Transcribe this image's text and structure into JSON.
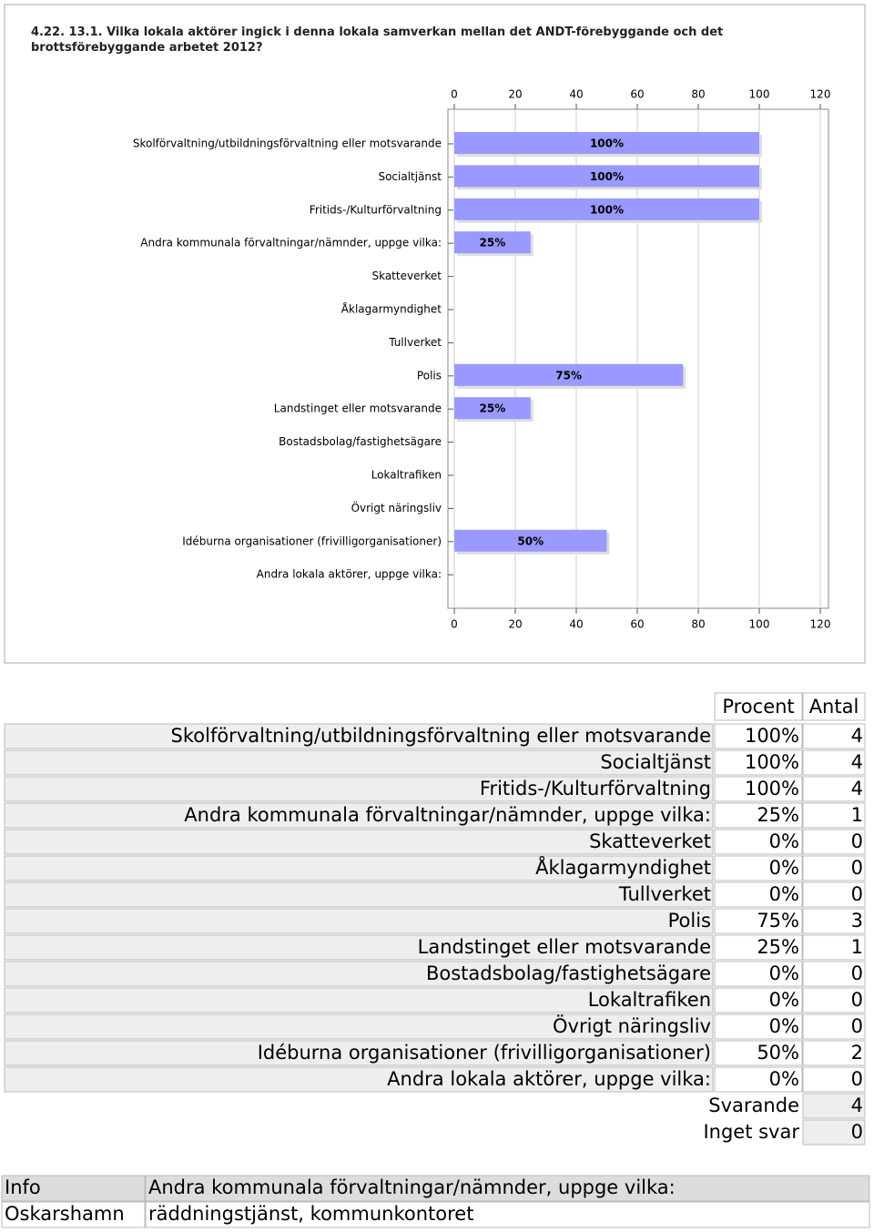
{
  "chart_data": {
    "type": "bar",
    "orientation": "horizontal",
    "title": "4.22. 13.1. Vilka lokala aktörer ingick i denna lokala samverkan mellan det ANDT-förebyggande och det brottsförebyggande arbetet 2012?",
    "categories": [
      "Skolförvaltning/utbildningsförvaltning eller motsvarande",
      "Socialtjänst",
      "Fritids-/Kulturförvaltning",
      "Andra kommunala förvaltningar/nämnder, uppge vilka:",
      "Skatteverket",
      "Åklagarmyndighet",
      "Tullverket",
      "Polis",
      "Landstinget eller motsvarande",
      "Bostadsbolag/fastighetsägare",
      "Lokaltrafiken",
      "Övrigt näringsliv",
      "Idéburna organisationer (frivilligorganisationer)",
      "Andra lokala aktörer, uppge vilka:"
    ],
    "values": [
      100,
      100,
      100,
      25,
      0,
      0,
      0,
      75,
      25,
      0,
      0,
      0,
      50,
      0
    ],
    "value_labels": [
      "100%",
      "100%",
      "100%",
      "25%",
      null,
      null,
      null,
      "75%",
      "25%",
      null,
      null,
      null,
      "50%",
      null
    ],
    "color": "#9999ff",
    "xlim": [
      0,
      120
    ],
    "xticks": [
      0,
      20,
      40,
      60,
      80,
      100,
      120
    ],
    "grid": true
  },
  "table": {
    "headers": [
      "Procent",
      "Antal"
    ],
    "rows": [
      {
        "procent": "100%",
        "antal": 4
      },
      {
        "procent": "100%",
        "antal": 4
      },
      {
        "procent": "100%",
        "antal": 4
      },
      {
        "procent": "25%",
        "antal": 1
      },
      {
        "procent": "0%",
        "antal": 0
      },
      {
        "procent": "0%",
        "antal": 0
      },
      {
        "procent": "0%",
        "antal": 0
      },
      {
        "procent": "75%",
        "antal": 3
      },
      {
        "procent": "25%",
        "antal": 1
      },
      {
        "procent": "0%",
        "antal": 0
      },
      {
        "procent": "0%",
        "antal": 0
      },
      {
        "procent": "0%",
        "antal": 0
      },
      {
        "procent": "50%",
        "antal": 2
      },
      {
        "procent": "0%",
        "antal": 0
      }
    ],
    "summary": [
      {
        "label": "Svarande",
        "value": 4
      },
      {
        "label": "Inget svar",
        "value": 0
      }
    ]
  },
  "info": {
    "rows": [
      [
        "Info",
        "Andra kommunala förvaltningar/nämnder, uppge vilka:"
      ],
      [
        "Oskarshamn",
        "räddningstjänst, kommunkontoret"
      ]
    ]
  }
}
